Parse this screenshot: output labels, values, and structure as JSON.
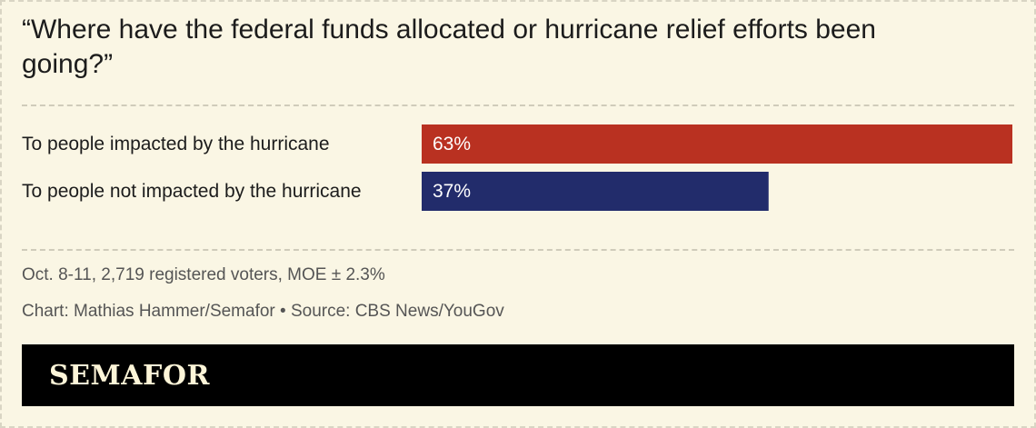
{
  "chart_data": {
    "type": "bar",
    "orientation": "horizontal",
    "title": "“Where have the federal funds allocated or hurricane relief efforts been going?”",
    "categories": [
      "To people impacted by the hurricane",
      "To people not impacted by the hurricane"
    ],
    "values": [
      63,
      37
    ],
    "value_labels": [
      "63%",
      "37%"
    ],
    "colors": [
      "#b93121",
      "#222c6b"
    ],
    "xlim": [
      0,
      63
    ],
    "grid": false
  },
  "footnote": "Oct. 8-11, 2,719 registered voters, MOE ± 2.3%",
  "credit": "Chart: Mathias Hammer/Semafor • Source: CBS News/YouGov",
  "brand": "SEMAFOR"
}
